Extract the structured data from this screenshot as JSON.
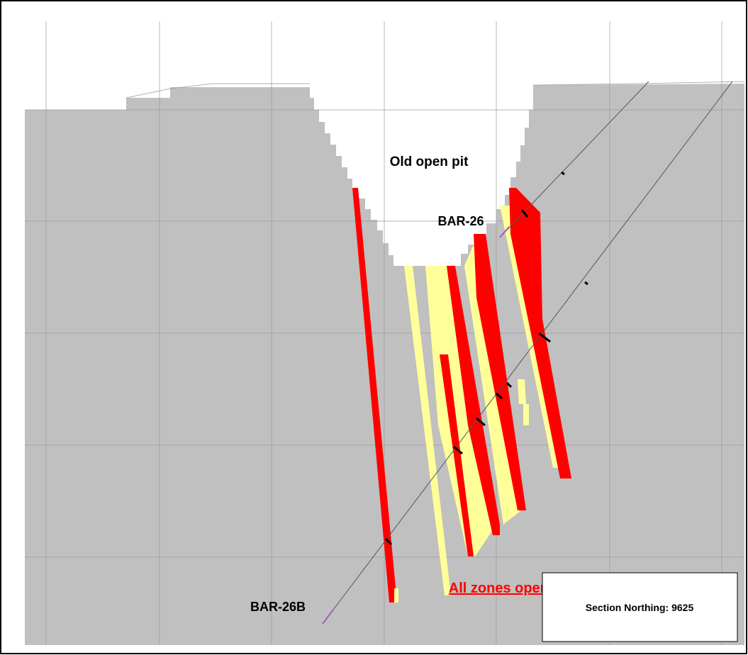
{
  "labels": {
    "pit": "Old open pit",
    "hole_1": "BAR-26",
    "hole_2": "BAR-26B",
    "note": "All zones open at depth"
  },
  "section_box": "Section Northing: 9625"
}
